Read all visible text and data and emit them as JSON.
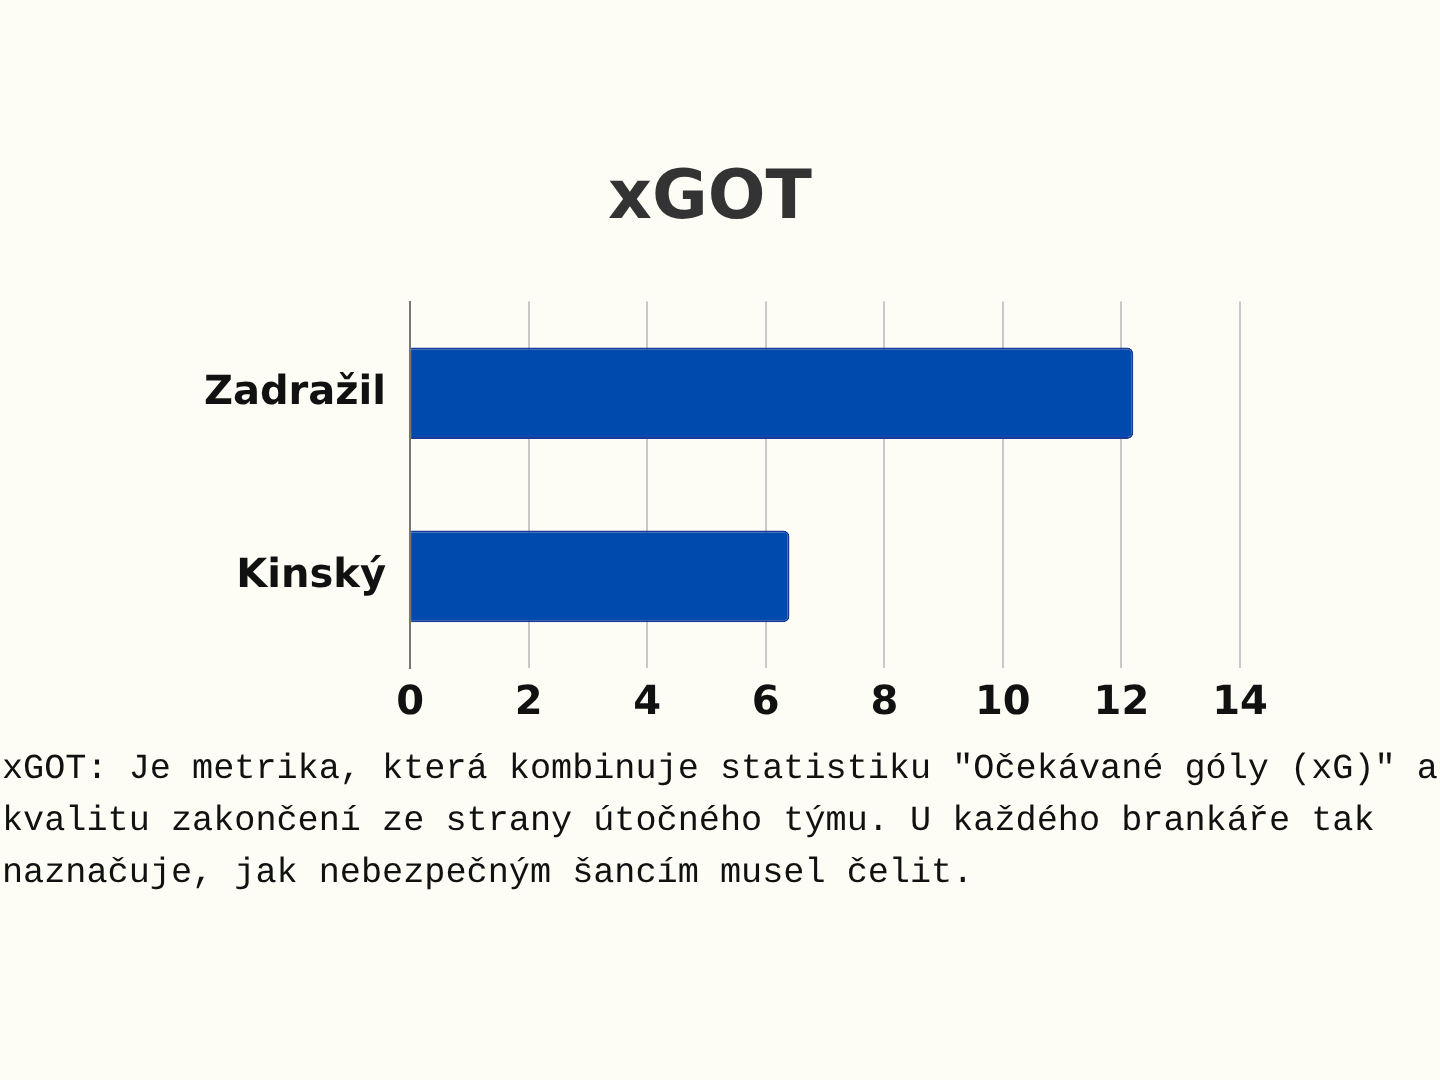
{
  "chart_data": {
    "type": "bar",
    "orientation": "horizontal",
    "title": "xGOT",
    "categories": [
      "Zadražil",
      "Kinský"
    ],
    "series": [
      {
        "color": "#004aad",
        "values": [
          12.2,
          6.4
        ]
      }
    ],
    "xlim": [
      0,
      14
    ],
    "xticks": [
      0,
      2,
      4,
      6,
      8,
      10,
      12,
      14
    ],
    "grid": "x",
    "legend": false,
    "annotations": [
      "xGOT: Je metrika, která kombinuje statistiku \"Očekávané góly (xG)\" a kvalitu zakončení ze strany útočného týmu. U každého brankáře tak naznačuje, jak nebezpečným šancím musel čelit."
    ]
  }
}
